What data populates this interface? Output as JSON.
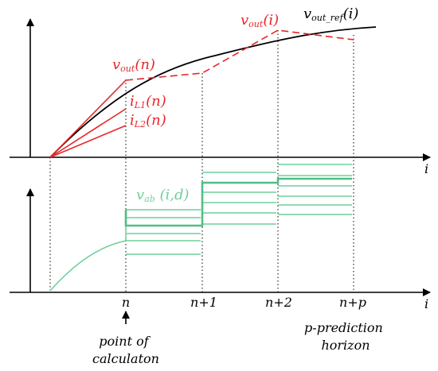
{
  "colors": {
    "reference_curve": "#000000",
    "prediction": "#e8262a",
    "voltage_levels": "#6fcf9b",
    "axes": "#000000",
    "guides": "#000000"
  },
  "top_plot": {
    "x_axis_label": "i",
    "vout_label": {
      "main": "v",
      "sub": "out",
      "arg": "(n)"
    },
    "iL1_label": {
      "main": "i",
      "sub": "L1",
      "arg": "(n)"
    },
    "iL2_label": {
      "main": "i",
      "sub": "L2",
      "arg": "(n)"
    },
    "vout_i_label": {
      "main": "v",
      "sub": "out",
      "arg": "(i)"
    },
    "vout_ref_label": {
      "main": "v",
      "sub": "out_ref",
      "arg": "(i)"
    }
  },
  "bottom_plot": {
    "x_axis_label": "i",
    "vab_label": {
      "main": "v",
      "sub": "ab",
      "arg": " (i,d)"
    },
    "ticks": [
      "n",
      "n+1",
      "n+2",
      "n+p"
    ]
  },
  "annotations": {
    "point_of_calculation": [
      "point of",
      "calculaton"
    ],
    "prediction_horizon": [
      "p-prediction",
      "horizon"
    ]
  }
}
